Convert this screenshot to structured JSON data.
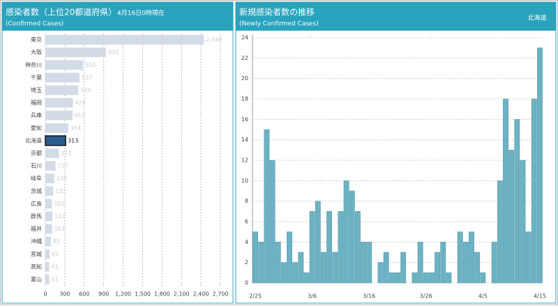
{
  "chart_data": [
    {
      "type": "barh",
      "title": "感染者数（上位20都道府県）",
      "subtitle": "(Confirmed Cases)",
      "annotation": "4月16日0時現在",
      "categories": [
        "東京",
        "大阪",
        "神奈川",
        "千葉",
        "埼玉",
        "福岡",
        "兵庫",
        "愛知",
        "北海道",
        "京都",
        "石川",
        "岐阜",
        "茨城",
        "広島",
        "群馬",
        "福井",
        "沖縄",
        "宮城",
        "高知",
        "富山"
      ],
      "values": [
        2446,
        935,
        580,
        527,
        509,
        426,
        419,
        354,
        313,
        211,
        157,
        139,
        121,
        102,
        110,
        103,
        85,
        65,
        61,
        61
      ],
      "value_labels": [
        "2,446",
        "935",
        "580",
        "527",
        "509",
        "426",
        "419",
        "354",
        "313",
        "211",
        "157",
        "139",
        "121",
        "102",
        "110",
        "103",
        "85",
        "65",
        "61",
        "61"
      ],
      "colors": [
        "#d2dbe6",
        "#d2dbe6",
        "#d2dbe6",
        "#d2dbe6",
        "#d2dbe6",
        "#d2dbe6",
        "#d2dbe6",
        "#d2dbe6",
        "#2b5a8c",
        "#d2dbe6",
        "#d2dbe6",
        "#d2dbe6",
        "#d2dbe6",
        "#d2dbe6",
        "#d2dbe6",
        "#d2dbe6",
        "#d2dbe6",
        "#d2dbe6",
        "#d2dbe6",
        "#d2dbe6"
      ],
      "xlim": [
        0,
        2700
      ],
      "xticks": [
        0,
        300,
        600,
        900,
        {
          "value": 1200,
          "label": "1,200"
        },
        {
          "value": 1500,
          "label": "1,500"
        },
        {
          "value": 1800,
          "label": "1,800"
        },
        {
          "value": 2100,
          "label": "2,100"
        },
        {
          "value": 2400,
          "label": "2,400"
        },
        {
          "value": 2700,
          "label": "2,700"
        }
      ],
      "grid": true
    },
    {
      "type": "bar",
      "title": "新規感染者数の推移",
      "subtitle": "(Newly Confirmed Cases)",
      "annotation": "北海道",
      "categories": [
        "2/25",
        null,
        null,
        null,
        null,
        null,
        null,
        null,
        null,
        null,
        "3/6",
        null,
        null,
        null,
        null,
        null,
        null,
        null,
        null,
        null,
        "3/16",
        null,
        null,
        null,
        null,
        null,
        null,
        null,
        null,
        null,
        "3/26",
        null,
        null,
        null,
        null,
        null,
        null,
        null,
        null,
        null,
        "4/5",
        null,
        null,
        null,
        null,
        null,
        null,
        null,
        null,
        null,
        "4/15"
      ],
      "values": [
        5,
        4,
        15,
        12,
        4,
        2,
        5,
        2,
        3,
        1,
        7,
        8,
        3,
        7,
        3,
        7,
        10,
        9,
        7,
        4,
        4,
        0,
        2,
        3,
        1,
        1,
        3,
        0,
        1,
        4,
        1,
        1,
        3,
        4,
        1,
        0,
        5,
        4,
        5,
        3,
        1,
        0,
        4,
        10,
        18,
        13,
        16,
        12,
        5,
        18,
        23
      ],
      "color": "#6db2c3",
      "ylim": [
        0,
        24
      ],
      "yticks": [
        0,
        2,
        4,
        6,
        8,
        10,
        12,
        14,
        16,
        18,
        20,
        22,
        24
      ],
      "grid": true
    }
  ]
}
